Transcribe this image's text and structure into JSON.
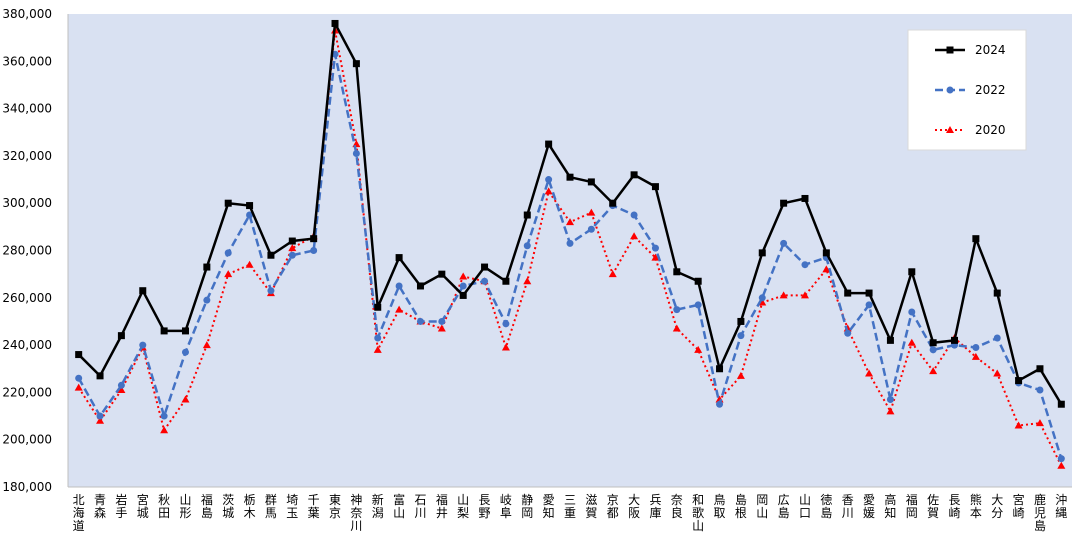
{
  "chart_data": {
    "type": "line",
    "title": "",
    "xlabel": "",
    "ylabel": "",
    "ylim": [
      180000,
      380000
    ],
    "ytick_step": 20000,
    "yticks": [
      "180,000",
      "200,000",
      "220,000",
      "240,000",
      "260,000",
      "280,000",
      "300,000",
      "320,000",
      "340,000",
      "360,000",
      "380,000"
    ],
    "grid": false,
    "legend_position": "top-right",
    "plot_background": "#d9e1f2",
    "categories": [
      "北海道",
      "青森",
      "岩手",
      "宮城",
      "秋田",
      "山形",
      "福島",
      "茨城",
      "栃木",
      "群馬",
      "埼玉",
      "千葉",
      "東京",
      "神奈川",
      "新潟",
      "富山",
      "石川",
      "福井",
      "山梨",
      "長野",
      "岐阜",
      "静岡",
      "愛知",
      "三重",
      "滋賀",
      "京都",
      "大阪",
      "兵庫",
      "奈良",
      "和歌山",
      "鳥取",
      "島根",
      "岡山",
      "広島",
      "山口",
      "徳島",
      "香川",
      "愛媛",
      "高知",
      "福岡",
      "佐賀",
      "長崎",
      "熊本",
      "大分",
      "宮崎",
      "鹿児島",
      "沖縄"
    ],
    "series": [
      {
        "name": "2024",
        "color": "#000000",
        "marker": "square",
        "dash": "solid",
        "values": [
          236000,
          227000,
          244000,
          263000,
          246000,
          246000,
          273000,
          300000,
          299000,
          278000,
          284000,
          285000,
          376000,
          359000,
          256000,
          277000,
          265000,
          270000,
          261000,
          273000,
          267000,
          295000,
          325000,
          311000,
          309000,
          300000,
          312000,
          307000,
          271000,
          267000,
          230000,
          250000,
          279000,
          300000,
          302000,
          279000,
          262000,
          262000,
          242000,
          271000,
          241000,
          242000,
          285000,
          262000,
          225000,
          230000,
          215000
        ]
      },
      {
        "name": "2022",
        "color": "#4472c4",
        "marker": "circle",
        "dash": "dashed",
        "values": [
          226000,
          210000,
          223000,
          240000,
          210000,
          237000,
          259000,
          279000,
          295000,
          263000,
          278000,
          280000,
          363000,
          321000,
          243000,
          265000,
          250000,
          250000,
          265000,
          267000,
          249000,
          282000,
          310000,
          283000,
          289000,
          299000,
          295000,
          281000,
          255000,
          257000,
          215000,
          244000,
          260000,
          283000,
          274000,
          277000,
          245000,
          257000,
          217000,
          254000,
          238000,
          240000,
          239000,
          243000,
          224000,
          221000,
          192000
        ]
      },
      {
        "name": "2020",
        "color": "#ff0000",
        "marker": "triangle",
        "dash": "dotted",
        "values": [
          222000,
          208000,
          221000,
          239000,
          204000,
          217000,
          240000,
          270000,
          274000,
          262000,
          281000,
          286000,
          373000,
          325000,
          238000,
          255000,
          250000,
          247000,
          269000,
          267000,
          239000,
          267000,
          305000,
          292000,
          296000,
          270000,
          286000,
          277000,
          247000,
          238000,
          217000,
          227000,
          258000,
          261000,
          261000,
          272000,
          247000,
          228000,
          212000,
          241000,
          229000,
          243000,
          235000,
          228000,
          206000,
          207000,
          189000
        ]
      }
    ]
  }
}
